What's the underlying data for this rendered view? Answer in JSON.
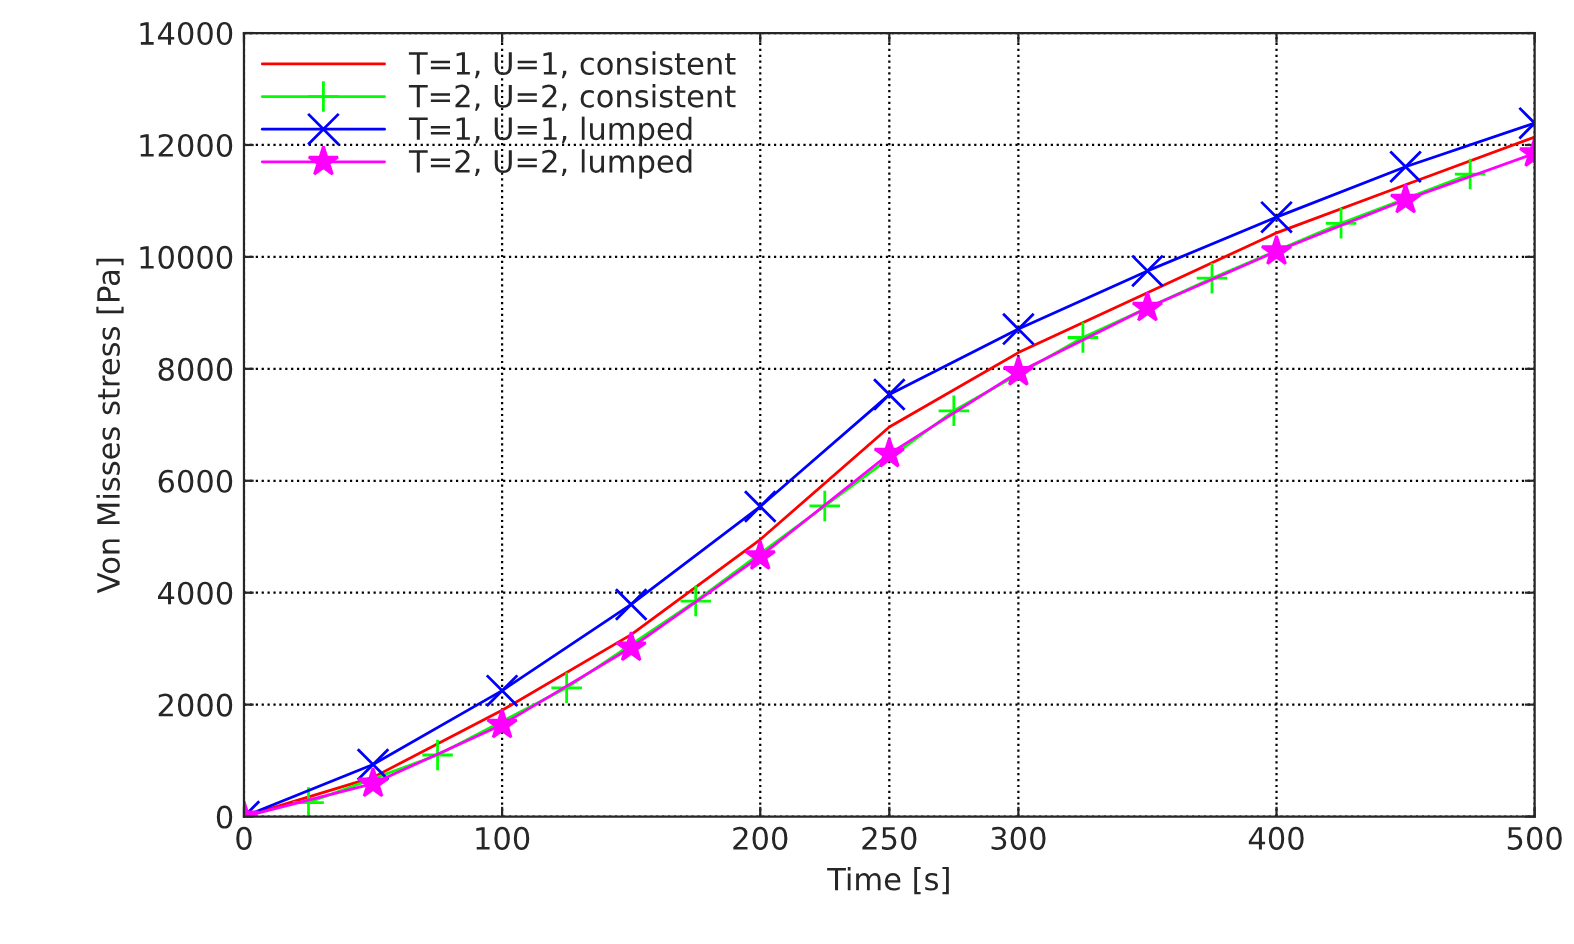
{
  "chart_data": {
    "type": "line",
    "xlabel": "Time [s]",
    "ylabel": "Von Misses stress [Pa]",
    "xlim": [
      0,
      500
    ],
    "xticks": [
      0,
      100,
      200,
      250,
      300,
      400,
      500
    ],
    "ylim": [
      0,
      14000
    ],
    "yticks": [
      0,
      2000,
      4000,
      6000,
      8000,
      10000,
      12000,
      14000
    ],
    "grid": true,
    "legend": "top left",
    "line_style": "solid",
    "series": [
      {
        "name": "T=1, U=1, consistent",
        "color": "#ff0000",
        "marker": "none",
        "x": [
          0,
          50,
          100,
          150,
          200,
          250,
          300,
          350,
          400,
          450,
          500
        ],
        "values": [
          0,
          700,
          1900,
          3250,
          4950,
          6960,
          8290,
          9360,
          10430,
          11290,
          12140
        ]
      },
      {
        "name": "T=2, U=2, consistent",
        "color": "#00ff00",
        "marker": "plus",
        "x": [
          25,
          75,
          125,
          175,
          225,
          275,
          325,
          375,
          425,
          475
        ],
        "values": [
          250,
          1100,
          2300,
          3850,
          5550,
          7250,
          8560,
          9620,
          10600,
          11480
        ]
      },
      {
        "name": "T=1, U=1, lumped",
        "color": "#0000ff",
        "marker": "cross",
        "x": [
          0,
          50,
          100,
          150,
          200,
          250,
          300,
          350,
          400,
          450,
          500
        ],
        "values": [
          0,
          930,
          2250,
          3790,
          5540,
          7540,
          8710,
          9750,
          10710,
          11610,
          12390
        ]
      },
      {
        "name": "T=2, U=2, lumped",
        "color": "#ff00ff",
        "marker": "star",
        "x": [
          0,
          50,
          100,
          150,
          200,
          250,
          300,
          350,
          400,
          450,
          500
        ],
        "values": [
          0,
          590,
          1640,
          3020,
          4650,
          6480,
          7940,
          9090,
          10100,
          11020,
          11850
        ]
      }
    ]
  }
}
